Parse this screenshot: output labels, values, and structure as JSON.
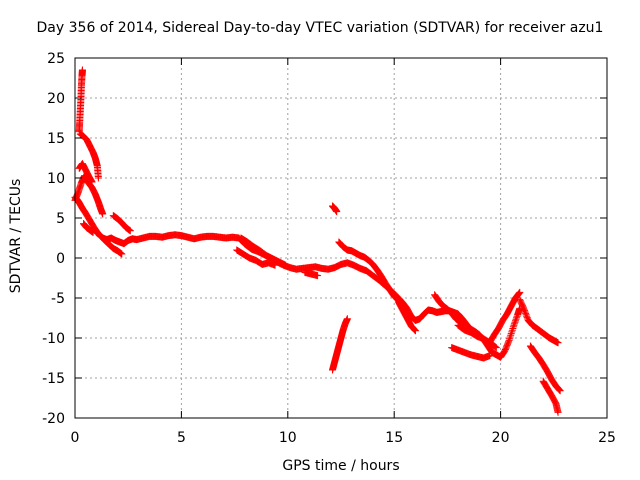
{
  "chart_data": {
    "type": "scatter",
    "title": "Day 356 of 2014, Sidereal Day-to-day VTEC variation (SDTVAR) for receiver azu1",
    "xlabel": "GPS time / hours",
    "ylabel": "SDTVAR / TECUs",
    "xlim": [
      0,
      25
    ],
    "ylim": [
      -20,
      25
    ],
    "xticks": [
      0,
      5,
      10,
      15,
      20,
      25
    ],
    "yticks": [
      -20,
      -15,
      -10,
      -5,
      0,
      5,
      10,
      15,
      20,
      25
    ],
    "grid": true,
    "marker": "+",
    "color": "#ff0000",
    "series": [
      {
        "name": "azu1",
        "segments": [
          [
            [
              0.0,
              7.6
            ],
            [
              0.1,
              7.3
            ],
            [
              0.2,
              6.9
            ],
            [
              0.35,
              6.2
            ],
            [
              0.5,
              5.6
            ],
            [
              0.7,
              4.7
            ],
            [
              0.9,
              3.8
            ],
            [
              1.1,
              3.0
            ],
            [
              1.3,
              2.5
            ],
            [
              1.5,
              2.3
            ],
            [
              1.7,
              2.5
            ],
            [
              1.9,
              2.2
            ],
            [
              2.1,
              2.0
            ],
            [
              2.3,
              1.8
            ],
            [
              2.5,
              2.2
            ],
            [
              2.7,
              2.4
            ],
            [
              2.9,
              2.3
            ],
            [
              3.2,
              2.5
            ],
            [
              3.5,
              2.7
            ],
            [
              3.8,
              2.7
            ],
            [
              4.1,
              2.6
            ],
            [
              4.4,
              2.8
            ],
            [
              4.7,
              2.9
            ],
            [
              5.0,
              2.8
            ],
            [
              5.3,
              2.6
            ],
            [
              5.6,
              2.4
            ],
            [
              5.9,
              2.6
            ],
            [
              6.2,
              2.7
            ],
            [
              6.5,
              2.7
            ],
            [
              6.8,
              2.6
            ],
            [
              7.1,
              2.5
            ],
            [
              7.4,
              2.6
            ],
            [
              7.7,
              2.5
            ],
            [
              8.0,
              1.7
            ],
            [
              8.3,
              1.1
            ],
            [
              8.6,
              0.8
            ],
            [
              8.9,
              0.4
            ],
            [
              9.2,
              0.0
            ],
            [
              9.5,
              -0.5
            ],
            [
              9.8,
              -0.9
            ],
            [
              10.1,
              -1.2
            ],
            [
              10.4,
              -1.4
            ],
            [
              10.7,
              -1.3
            ],
            [
              11.0,
              -1.2
            ],
            [
              11.3,
              -1.1
            ],
            [
              11.6,
              -1.3
            ],
            [
              11.9,
              -1.4
            ],
            [
              12.2,
              -1.2
            ],
            [
              12.5,
              -0.8
            ],
            [
              12.8,
              -0.6
            ],
            [
              13.1,
              -0.9
            ],
            [
              13.4,
              -1.3
            ],
            [
              13.7,
              -1.6
            ],
            [
              14.0,
              -2.2
            ],
            [
              14.3,
              -2.8
            ],
            [
              14.6,
              -3.5
            ],
            [
              14.9,
              -4.2
            ],
            [
              15.2,
              -5.0
            ],
            [
              15.4,
              -5.6
            ],
            [
              15.6,
              -6.3
            ],
            [
              15.8,
              -7.3
            ],
            [
              16.0,
              -7.8
            ],
            [
              16.2,
              -7.6
            ],
            [
              16.4,
              -7.0
            ],
            [
              16.6,
              -6.5
            ],
            [
              16.8,
              -6.6
            ],
            [
              17.0,
              -6.8
            ],
            [
              17.2,
              -6.7
            ],
            [
              17.4,
              -6.6
            ],
            [
              17.6,
              -6.6
            ],
            [
              17.8,
              -6.8
            ],
            [
              18.0,
              -7.0
            ],
            [
              18.2,
              -7.6
            ],
            [
              18.4,
              -8.3
            ],
            [
              18.6,
              -8.9
            ],
            [
              18.8,
              -9.2
            ],
            [
              19.0,
              -9.6
            ],
            [
              19.2,
              -10.2
            ],
            [
              19.4,
              -11.0
            ],
            [
              19.6,
              -11.8
            ],
            [
              19.8,
              -12.1
            ],
            [
              20.0,
              -12.4
            ],
            [
              20.2,
              -11.6
            ],
            [
              20.4,
              -10.3
            ],
            [
              20.6,
              -8.6
            ],
            [
              20.8,
              -7.1
            ],
            [
              20.9,
              -6.3
            ]
          ],
          [
            [
              0.0,
              7.2
            ],
            [
              0.15,
              8.2
            ],
            [
              0.3,
              9.4
            ],
            [
              0.45,
              10.3
            ],
            [
              0.6,
              9.5
            ],
            [
              0.8,
              8.8
            ],
            [
              0.95,
              8.0
            ],
            [
              1.1,
              7.0
            ],
            [
              1.2,
              6.2
            ],
            [
              1.3,
              5.5
            ]
          ],
          [
            [
              0.2,
              11.2
            ],
            [
              0.35,
              11.8
            ],
            [
              0.5,
              11.0
            ],
            [
              0.65,
              10.2
            ],
            [
              0.8,
              9.5
            ]
          ],
          [
            [
              0.25,
              15.5
            ],
            [
              0.4,
              15.2
            ],
            [
              0.55,
              14.8
            ],
            [
              0.7,
              14.0
            ],
            [
              0.85,
              13.2
            ],
            [
              0.95,
              12.5
            ],
            [
              1.05,
              11.5
            ],
            [
              1.1,
              10.0
            ]
          ],
          [
            [
              0.2,
              15.8
            ],
            [
              0.22,
              17.0
            ],
            [
              0.25,
              18.5
            ],
            [
              0.28,
              20.0
            ],
            [
              0.3,
              21.5
            ],
            [
              0.33,
              22.8
            ],
            [
              0.35,
              23.5
            ]
          ],
          [
            [
              1.0,
              3.2
            ],
            [
              1.2,
              2.8
            ],
            [
              1.4,
              2.2
            ],
            [
              1.6,
              1.7
            ],
            [
              1.8,
              1.2
            ],
            [
              2.0,
              0.9
            ],
            [
              2.2,
              0.5
            ]
          ],
          [
            [
              1.8,
              5.3
            ],
            [
              2.0,
              4.9
            ],
            [
              2.2,
              4.4
            ],
            [
              2.4,
              3.8
            ],
            [
              2.6,
              3.4
            ]
          ],
          [
            [
              0.4,
              4.3
            ],
            [
              0.55,
              3.8
            ],
            [
              0.7,
              3.5
            ],
            [
              0.85,
              3.2
            ]
          ],
          [
            [
              7.8,
              2.5
            ],
            [
              8.1,
              2.0
            ],
            [
              8.4,
              1.4
            ],
            [
              8.7,
              0.9
            ],
            [
              9.0,
              0.3
            ],
            [
              9.3,
              -0.1
            ],
            [
              9.6,
              -0.5
            ],
            [
              9.9,
              -0.9
            ]
          ],
          [
            [
              7.6,
              1.0
            ],
            [
              7.9,
              0.5
            ],
            [
              8.2,
              0.0
            ],
            [
              8.5,
              -0.3
            ],
            [
              8.8,
              -0.8
            ],
            [
              9.1,
              -0.6
            ],
            [
              9.4,
              -0.9
            ]
          ],
          [
            [
              10.8,
              -1.8
            ],
            [
              11.1,
              -2.0
            ],
            [
              11.4,
              -2.2
            ]
          ],
          [
            [
              12.1,
              6.5
            ],
            [
              12.2,
              6.2
            ],
            [
              12.3,
              5.8
            ]
          ],
          [
            [
              12.1,
              -14.0
            ],
            [
              12.2,
              -13.0
            ],
            [
              12.3,
              -12.0
            ],
            [
              12.4,
              -11.0
            ],
            [
              12.5,
              -10.0
            ],
            [
              12.6,
              -9.0
            ],
            [
              12.7,
              -8.2
            ],
            [
              12.8,
              -7.6
            ]
          ],
          [
            [
              12.4,
              2.0
            ],
            [
              12.6,
              1.4
            ],
            [
              12.8,
              1.0
            ],
            [
              13.0,
              0.9
            ],
            [
              13.2,
              0.6
            ],
            [
              13.4,
              0.3
            ],
            [
              13.6,
              0.1
            ],
            [
              13.8,
              -0.3
            ],
            [
              14.0,
              -0.8
            ],
            [
              14.2,
              -1.5
            ],
            [
              14.4,
              -2.3
            ],
            [
              14.6,
              -3.2
            ],
            [
              14.8,
              -4.0
            ],
            [
              15.0,
              -4.8
            ],
            [
              15.2,
              -5.3
            ],
            [
              15.4,
              -6.0
            ],
            [
              15.6,
              -6.6
            ]
          ],
          [
            [
              15.2,
              -5.5
            ],
            [
              15.4,
              -6.5
            ],
            [
              15.6,
              -7.5
            ],
            [
              15.8,
              -8.5
            ],
            [
              16.0,
              -9.1
            ]
          ],
          [
            [
              16.9,
              -4.6
            ],
            [
              17.1,
              -5.4
            ],
            [
              17.3,
              -6.0
            ],
            [
              17.5,
              -6.4
            ],
            [
              17.7,
              -6.9
            ],
            [
              17.9,
              -7.6
            ],
            [
              18.1,
              -8.0
            ],
            [
              18.3,
              -8.5
            ]
          ],
          [
            [
              18.0,
              -8.4
            ],
            [
              18.3,
              -9.0
            ],
            [
              18.6,
              -9.3
            ],
            [
              18.9,
              -9.8
            ],
            [
              19.2,
              -10.1
            ],
            [
              19.5,
              -10.6
            ],
            [
              19.8,
              -11.2
            ]
          ],
          [
            [
              17.7,
              -11.2
            ],
            [
              18.0,
              -11.5
            ],
            [
              18.3,
              -11.8
            ],
            [
              18.6,
              -12.1
            ],
            [
              18.9,
              -12.3
            ],
            [
              19.2,
              -12.5
            ],
            [
              19.5,
              -12.2
            ]
          ],
          [
            [
              19.5,
              -10.5
            ],
            [
              19.7,
              -9.6
            ],
            [
              19.9,
              -8.8
            ],
            [
              20.1,
              -7.8
            ],
            [
              20.3,
              -7.0
            ],
            [
              20.5,
              -6.0
            ],
            [
              20.7,
              -5.0
            ],
            [
              20.9,
              -4.3
            ]
          ],
          [
            [
              20.9,
              -5.2
            ],
            [
              21.1,
              -6.4
            ],
            [
              21.3,
              -7.8
            ],
            [
              21.5,
              -8.4
            ],
            [
              21.7,
              -8.8
            ],
            [
              21.9,
              -9.2
            ],
            [
              22.1,
              -9.6
            ],
            [
              22.3,
              -10.0
            ],
            [
              22.5,
              -10.3
            ],
            [
              22.7,
              -10.6
            ]
          ],
          [
            [
              21.4,
              -11.0
            ],
            [
              21.6,
              -11.8
            ],
            [
              21.8,
              -12.5
            ],
            [
              22.0,
              -13.3
            ],
            [
              22.2,
              -14.2
            ],
            [
              22.4,
              -15.2
            ],
            [
              22.6,
              -16.0
            ],
            [
              22.8,
              -16.6
            ]
          ],
          [
            [
              22.0,
              -15.4
            ],
            [
              22.2,
              -16.3
            ],
            [
              22.4,
              -17.2
            ],
            [
              22.6,
              -18.2
            ],
            [
              22.7,
              -19.3
            ]
          ]
        ]
      }
    ]
  }
}
